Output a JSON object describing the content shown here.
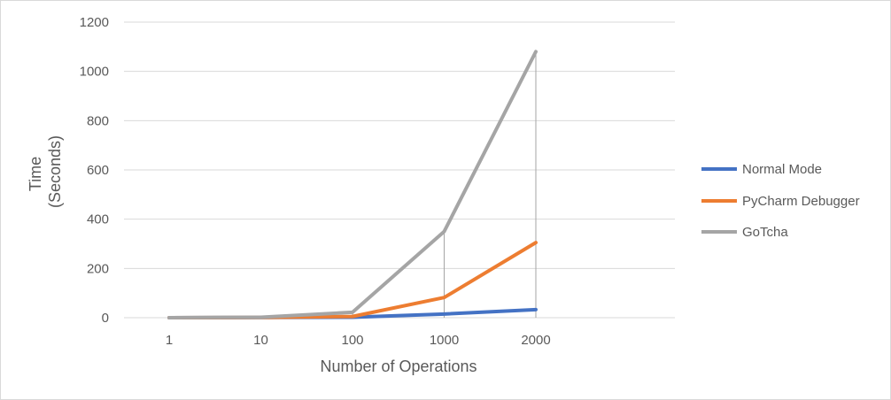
{
  "chart_data": {
    "type": "line",
    "categories": [
      "1",
      "10",
      "100",
      "1000",
      "2000"
    ],
    "xlabel": "Number of Operations",
    "ylabel_lines": [
      "Time",
      "(Seconds)"
    ],
    "ylim": [
      0,
      1200
    ],
    "yticks": [
      0,
      200,
      400,
      600,
      800,
      1000,
      1200
    ],
    "grid": true,
    "legend_position": "right",
    "series": [
      {
        "name": "Normal Mode",
        "color": "#4472C4",
        "values": [
          0,
          1,
          2,
          15,
          33
        ]
      },
      {
        "name": "PyCharm Debugger",
        "color": "#ED7D31",
        "values": [
          0,
          1,
          5,
          82,
          305
        ]
      },
      {
        "name": "GoTcha",
        "color": "#A5A5A5",
        "values": [
          0,
          2,
          22,
          350,
          1080
        ]
      }
    ]
  }
}
